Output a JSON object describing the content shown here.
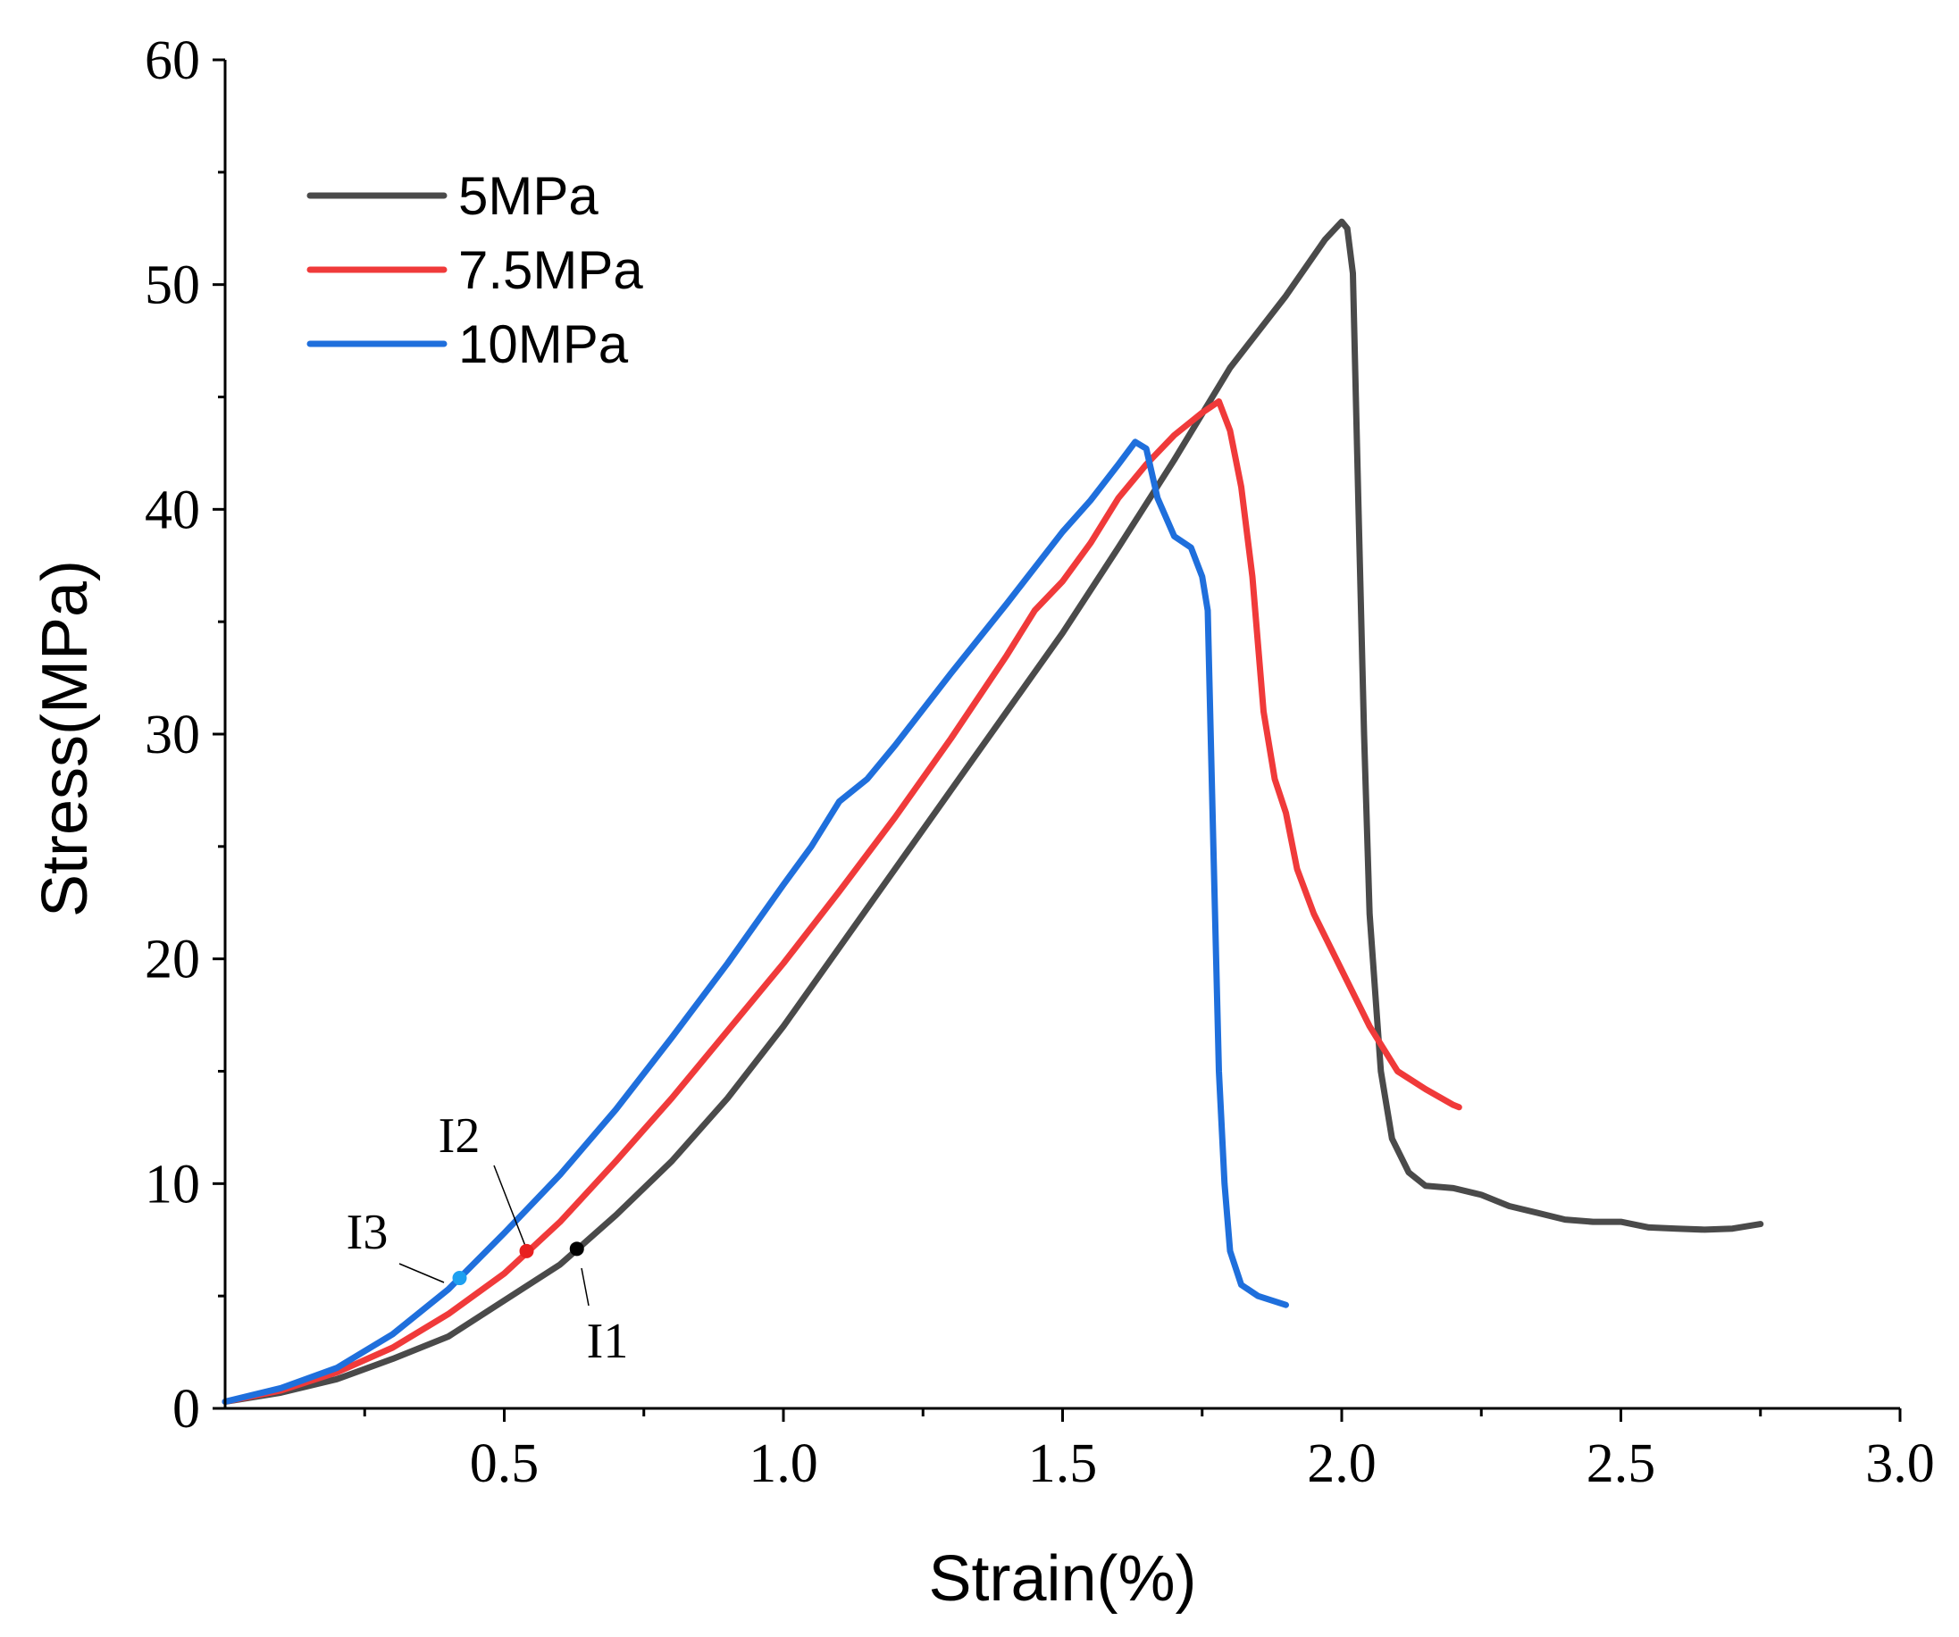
{
  "chart_data": {
    "type": "line",
    "title": "",
    "xlabel": "Strain(%)",
    "ylabel": "Stress(MPa)",
    "xlim": [
      0,
      3.0
    ],
    "ylim": [
      0,
      60
    ],
    "x_ticks": [
      {
        "value": 0.5,
        "label": "0.5"
      },
      {
        "value": 1.0,
        "label": "1.0"
      },
      {
        "value": 1.5,
        "label": "1.5"
      },
      {
        "value": 2.0,
        "label": "2.0"
      },
      {
        "value": 2.5,
        "label": "2.5"
      },
      {
        "value": 3.0,
        "label": "3.0"
      }
    ],
    "y_ticks": [
      {
        "value": 0,
        "label": "0"
      },
      {
        "value": 10,
        "label": "10"
      },
      {
        "value": 20,
        "label": "20"
      },
      {
        "value": 30,
        "label": "30"
      },
      {
        "value": 40,
        "label": "40"
      },
      {
        "value": 50,
        "label": "50"
      },
      {
        "value": 60,
        "label": "60"
      }
    ],
    "legend_position": "top-left",
    "series": [
      {
        "name": "5MPa",
        "color": "#4a4a4a",
        "points": [
          [
            0.0,
            0.3
          ],
          [
            0.1,
            0.7
          ],
          [
            0.2,
            1.3
          ],
          [
            0.3,
            2.2
          ],
          [
            0.4,
            3.2
          ],
          [
            0.5,
            4.8
          ],
          [
            0.6,
            6.4
          ],
          [
            0.7,
            8.6
          ],
          [
            0.8,
            11.0
          ],
          [
            0.9,
            13.8
          ],
          [
            1.0,
            17.0
          ],
          [
            1.1,
            20.5
          ],
          [
            1.2,
            24.0
          ],
          [
            1.3,
            27.5
          ],
          [
            1.4,
            31.0
          ],
          [
            1.5,
            34.5
          ],
          [
            1.6,
            38.3
          ],
          [
            1.7,
            42.2
          ],
          [
            1.8,
            46.3
          ],
          [
            1.9,
            49.5
          ],
          [
            1.97,
            52.0
          ],
          [
            2.0,
            52.8
          ],
          [
            2.01,
            52.5
          ],
          [
            2.02,
            50.5
          ],
          [
            2.03,
            40.0
          ],
          [
            2.04,
            30.0
          ],
          [
            2.05,
            22.0
          ],
          [
            2.07,
            15.0
          ],
          [
            2.09,
            12.0
          ],
          [
            2.12,
            10.5
          ],
          [
            2.15,
            9.9
          ],
          [
            2.2,
            9.8
          ],
          [
            2.25,
            9.5
          ],
          [
            2.3,
            9.0
          ],
          [
            2.35,
            8.7
          ],
          [
            2.4,
            8.4
          ],
          [
            2.45,
            8.3
          ],
          [
            2.5,
            8.3
          ],
          [
            2.55,
            8.05
          ],
          [
            2.6,
            8.0
          ],
          [
            2.65,
            7.95
          ],
          [
            2.7,
            8.0
          ],
          [
            2.75,
            8.2
          ]
        ]
      },
      {
        "name": "7.5MPa",
        "color": "#f03a3a",
        "points": [
          [
            0.0,
            0.3
          ],
          [
            0.1,
            0.8
          ],
          [
            0.2,
            1.6
          ],
          [
            0.3,
            2.7
          ],
          [
            0.4,
            4.2
          ],
          [
            0.5,
            6.0
          ],
          [
            0.6,
            8.3
          ],
          [
            0.7,
            11.0
          ],
          [
            0.8,
            13.8
          ],
          [
            0.9,
            16.8
          ],
          [
            1.0,
            19.8
          ],
          [
            1.1,
            23.0
          ],
          [
            1.2,
            26.3
          ],
          [
            1.3,
            29.8
          ],
          [
            1.4,
            33.5
          ],
          [
            1.45,
            35.5
          ],
          [
            1.5,
            36.8
          ],
          [
            1.55,
            38.5
          ],
          [
            1.6,
            40.5
          ],
          [
            1.65,
            42.0
          ],
          [
            1.7,
            43.3
          ],
          [
            1.75,
            44.3
          ],
          [
            1.78,
            44.8
          ],
          [
            1.8,
            43.5
          ],
          [
            1.82,
            41.0
          ],
          [
            1.84,
            37.0
          ],
          [
            1.86,
            31.0
          ],
          [
            1.88,
            28.0
          ],
          [
            1.9,
            26.5
          ],
          [
            1.92,
            24.0
          ],
          [
            1.95,
            22.0
          ],
          [
            2.0,
            19.5
          ],
          [
            2.05,
            17.0
          ],
          [
            2.1,
            15.0
          ],
          [
            2.15,
            14.2
          ],
          [
            2.2,
            13.5
          ],
          [
            2.21,
            13.4
          ]
        ]
      },
      {
        "name": "10MPa",
        "color": "#1f6fdc",
        "points": [
          [
            0.0,
            0.3
          ],
          [
            0.1,
            0.9
          ],
          [
            0.2,
            1.8
          ],
          [
            0.3,
            3.3
          ],
          [
            0.4,
            5.3
          ],
          [
            0.42,
            5.8
          ],
          [
            0.5,
            7.8
          ],
          [
            0.6,
            10.4
          ],
          [
            0.7,
            13.3
          ],
          [
            0.8,
            16.5
          ],
          [
            0.9,
            19.8
          ],
          [
            1.0,
            23.3
          ],
          [
            1.05,
            25.0
          ],
          [
            1.1,
            27.0
          ],
          [
            1.15,
            28.0
          ],
          [
            1.2,
            29.5
          ],
          [
            1.3,
            32.7
          ],
          [
            1.4,
            35.8
          ],
          [
            1.5,
            39.0
          ],
          [
            1.55,
            40.4
          ],
          [
            1.6,
            42.0
          ],
          [
            1.63,
            43.0
          ],
          [
            1.65,
            42.7
          ],
          [
            1.67,
            40.5
          ],
          [
            1.7,
            38.8
          ],
          [
            1.73,
            38.3
          ],
          [
            1.75,
            37.0
          ],
          [
            1.76,
            35.5
          ],
          [
            1.77,
            25.0
          ],
          [
            1.78,
            15.0
          ],
          [
            1.79,
            10.0
          ],
          [
            1.8,
            7.0
          ],
          [
            1.82,
            5.5
          ],
          [
            1.85,
            5.0
          ],
          [
            1.9,
            4.6
          ]
        ]
      }
    ],
    "annotations": [
      {
        "label": "I1",
        "x": 0.63,
        "y": 7.1,
        "color": "#000000"
      },
      {
        "label": "I2",
        "x": 0.54,
        "y": 7.0,
        "color": "#e82020"
      },
      {
        "label": "I3",
        "x": 0.42,
        "y": 5.8,
        "color": "#1ea0f0"
      }
    ]
  }
}
